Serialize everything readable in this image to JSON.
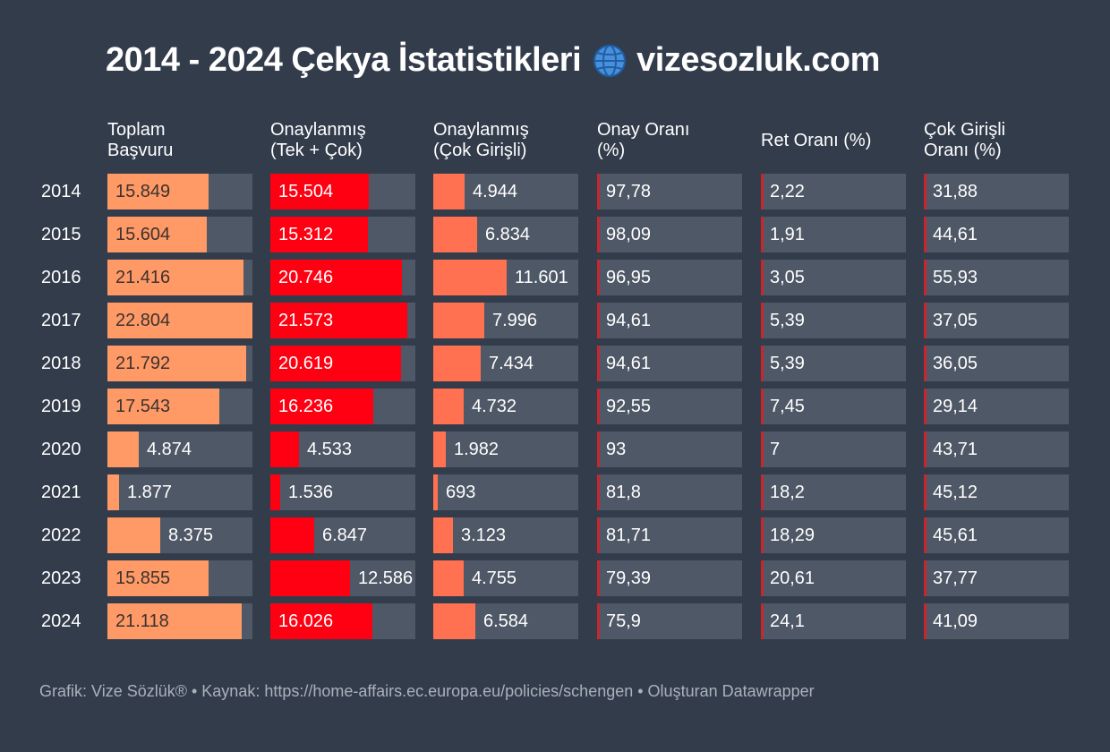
{
  "title_text": "2014 - 2024 Çekya İstatistikleri",
  "title_icon": "globe-icon",
  "title_site": "vizesozluk.com",
  "footer": "Grafik: Vize Sözlük® • Kaynak: https://home-affairs.ec.europa.eu/policies/schengen • Oluşturan Datawrapper",
  "colors": {
    "background": "#333c4b",
    "cell_bg": "#4f5866",
    "toplam": "#ff9966",
    "onay_tek_cok": "#ff0012",
    "onay_cok": "#ff7150",
    "percent_tick": "#c9252c"
  },
  "chart_data": {
    "type": "table",
    "rows": [
      "2014",
      "2015",
      "2016",
      "2017",
      "2018",
      "2019",
      "2020",
      "2021",
      "2022",
      "2023",
      "2024"
    ],
    "columns": [
      {
        "key": "toplam",
        "header": "Toplam Başvuru",
        "header_lines": [
          "Toplam",
          "Başvuru"
        ],
        "max": 22804,
        "style": "bar",
        "labels": [
          "15.849",
          "15.604",
          "21.416",
          "22.804",
          "21.792",
          "17.543",
          "4.874",
          "1.877",
          "8.375",
          "15.855",
          "21.118"
        ],
        "values": [
          15849,
          15604,
          21416,
          22804,
          21792,
          17543,
          4874,
          1877,
          8375,
          15855,
          21118
        ]
      },
      {
        "key": "onay_tek_cok",
        "header": "Onaylanmış (Tek + Çok)",
        "header_lines": [
          "Onaylanmış",
          "(Tek + Çok)"
        ],
        "max": 22804,
        "style": "bar",
        "labels": [
          "15.504",
          "15.312",
          "20.746",
          "21.573",
          "20.619",
          "16.236",
          "4.533",
          "1.536",
          "6.847",
          "12.586",
          "16.026"
        ],
        "values": [
          15504,
          15312,
          20746,
          21573,
          20619,
          16236,
          4533,
          1536,
          6847,
          12586,
          16026
        ]
      },
      {
        "key": "onay_cok",
        "header": "Onaylanmış (Çok Girişli)",
        "header_lines": [
          "Onaylanmış",
          "(Çok Girişli)"
        ],
        "max": 22804,
        "style": "bar",
        "labels": [
          "4.944",
          "6.834",
          "11.601",
          "7.996",
          "7.434",
          "4.732",
          "1.982",
          "693",
          "3.123",
          "4.755",
          "6.584"
        ],
        "values": [
          4944,
          6834,
          11601,
          7996,
          7434,
          4732,
          1982,
          693,
          3123,
          4755,
          6584
        ]
      },
      {
        "key": "onay_orani",
        "header": "Onay Oranı (%)",
        "header_lines": [
          "Onay Oranı",
          "(%)"
        ],
        "style": "percent",
        "labels": [
          "97,78",
          "98,09",
          "96,95",
          "94,61",
          "94,61",
          "92,55",
          "93",
          "81,8",
          "81,71",
          "79,39",
          "75,9"
        ],
        "values": [
          97.78,
          98.09,
          96.95,
          94.61,
          94.61,
          92.55,
          93,
          81.8,
          81.71,
          79.39,
          75.9
        ]
      },
      {
        "key": "ret_orani",
        "header": "Ret Oranı (%)",
        "header_lines": [
          "Ret Oranı (%)"
        ],
        "style": "percent",
        "labels": [
          "2,22",
          "1,91",
          "3,05",
          "5,39",
          "5,39",
          "7,45",
          "7",
          "18,2",
          "18,29",
          "20,61",
          "24,1"
        ],
        "values": [
          2.22,
          1.91,
          3.05,
          5.39,
          5.39,
          7.45,
          7,
          18.2,
          18.29,
          20.61,
          24.1
        ]
      },
      {
        "key": "cok_girisli_orani",
        "header": "Çok Girişli Oranı (%)",
        "header_lines": [
          "Çok Girişli",
          "Oranı (%)"
        ],
        "style": "percent",
        "labels": [
          "31,88",
          "44,61",
          "55,93",
          "37,05",
          "36,05",
          "29,14",
          "43,71",
          "45,12",
          "45,61",
          "37,77",
          "41,09"
        ],
        "values": [
          31.88,
          44.61,
          55.93,
          37.05,
          36.05,
          29.14,
          43.71,
          45.12,
          45.61,
          37.77,
          41.09
        ]
      }
    ]
  }
}
